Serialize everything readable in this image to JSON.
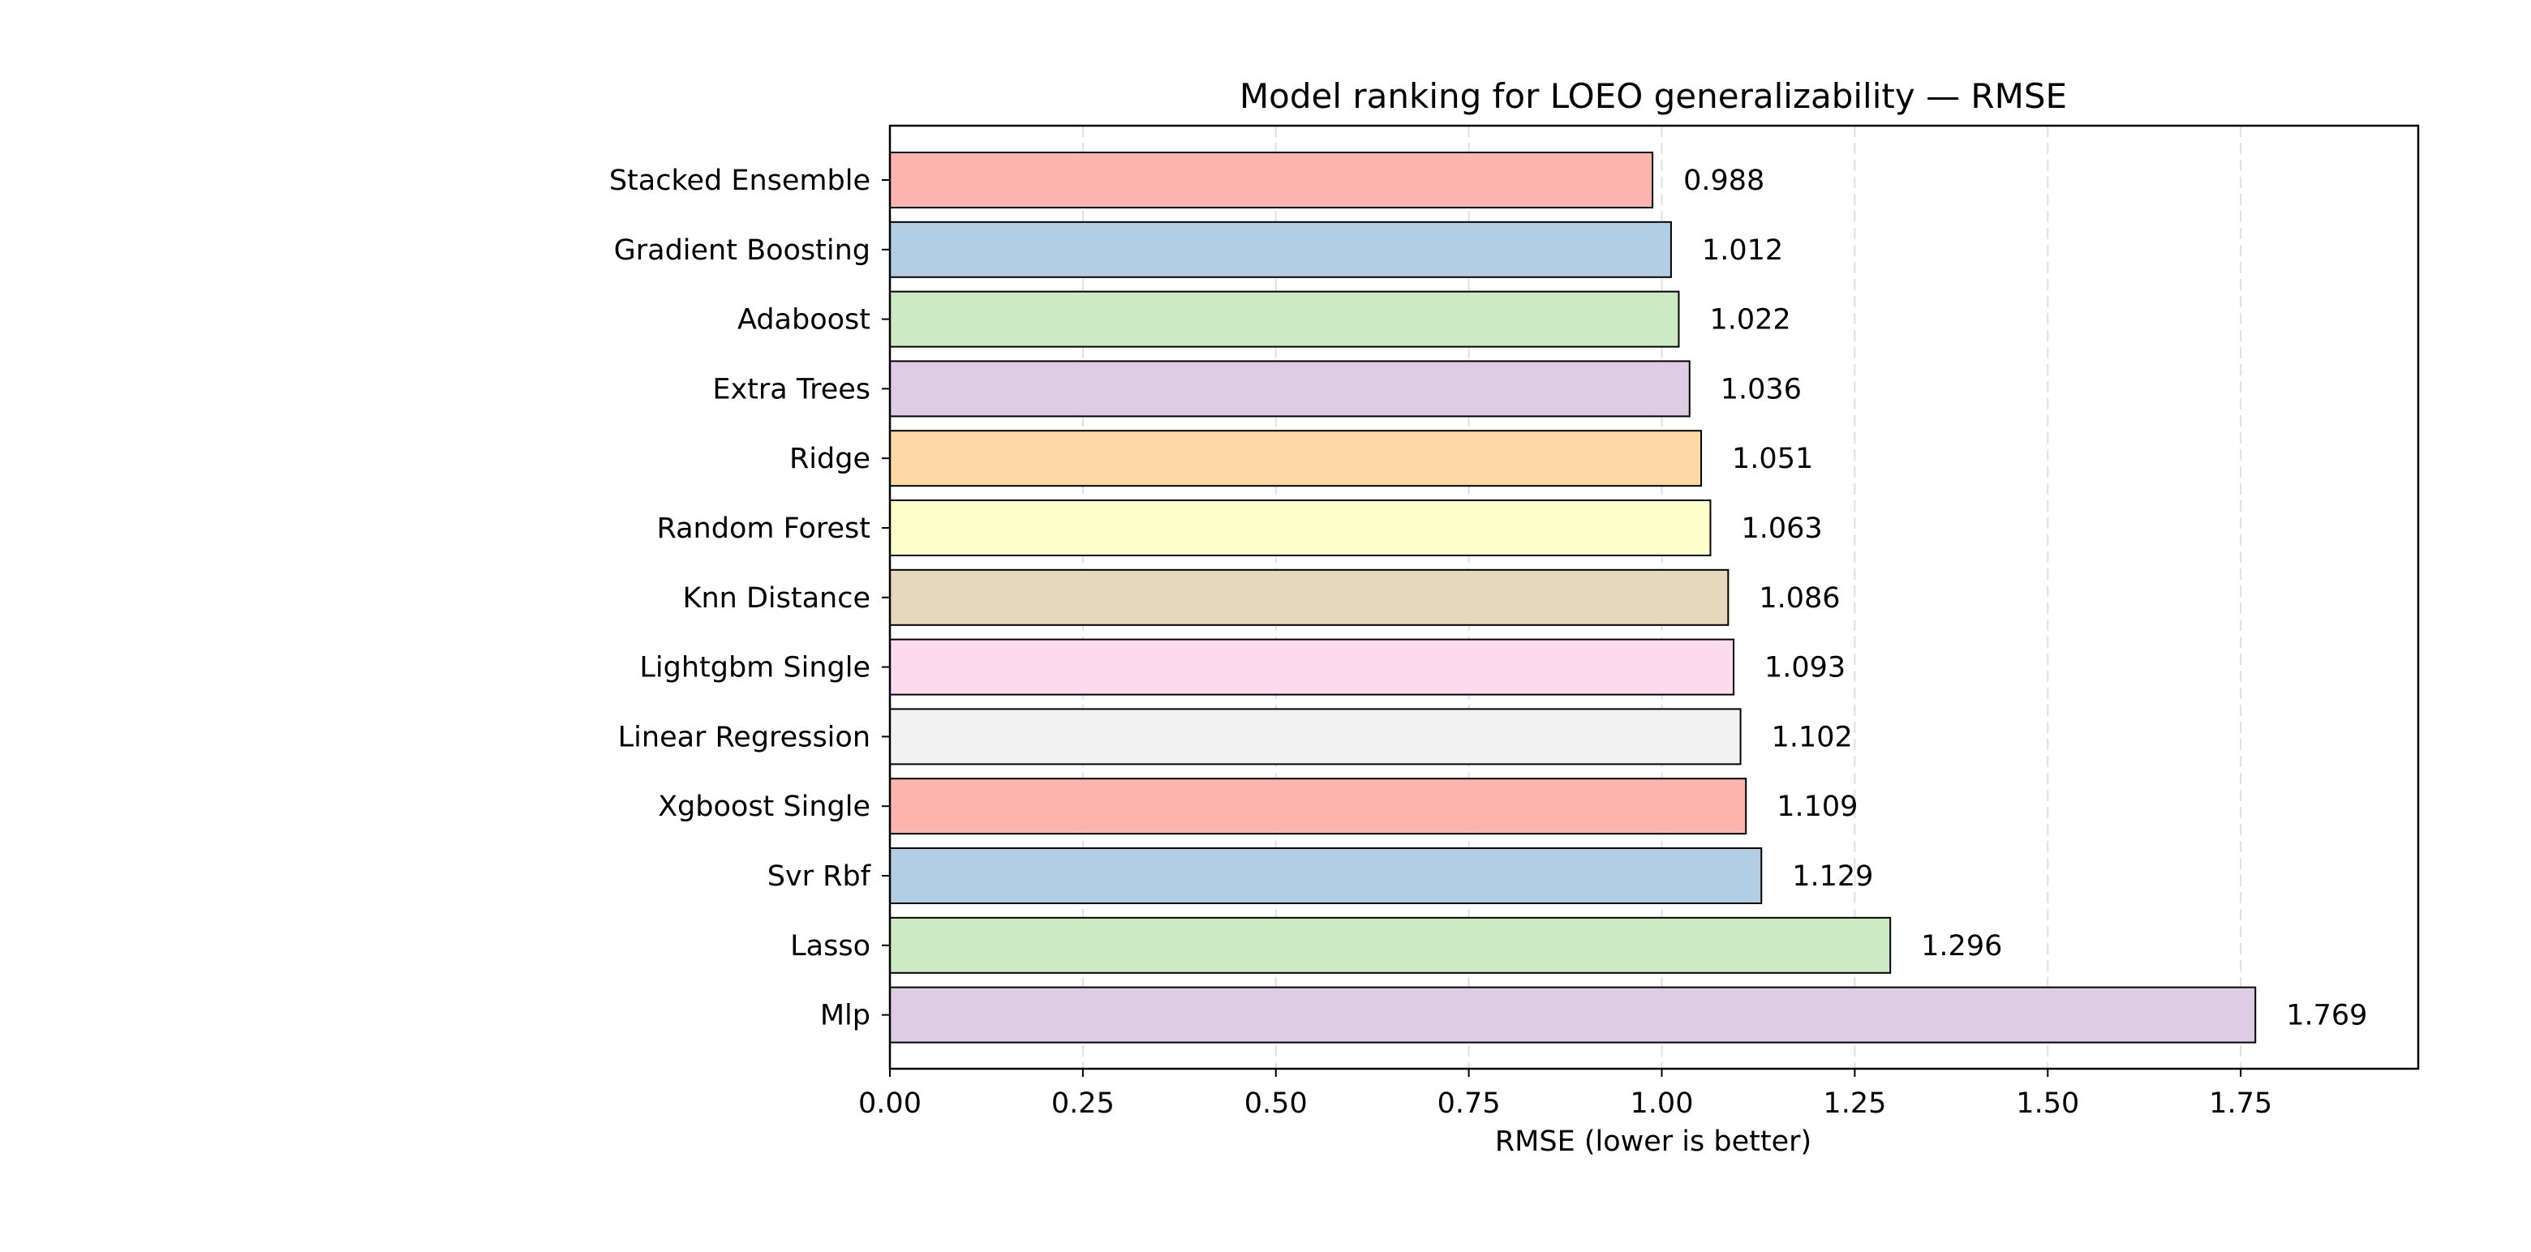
{
  "chart_data": {
    "type": "bar",
    "orientation": "horizontal",
    "title": "Model ranking for LOEO generalizability — RMSE",
    "xlabel": "RMSE (lower is better)",
    "ylabel": "",
    "xlim": [
      0,
      1.98
    ],
    "xticks": [
      0,
      0.25,
      0.5,
      0.75,
      1.0,
      1.25,
      1.5,
      1.75
    ],
    "xtick_labels": [
      "0.00",
      "0.25",
      "0.50",
      "0.75",
      "1.00",
      "1.25",
      "1.50",
      "1.75"
    ],
    "grid": "vertical dashed",
    "categories": [
      "Stacked Ensemble",
      "Gradient Boosting",
      "Adaboost",
      "Extra Trees",
      "Ridge",
      "Random Forest",
      "Knn Distance",
      "Lightgbm Single",
      "Linear Regression",
      "Xgboost Single",
      "Svr Rbf",
      "Lasso",
      "Mlp"
    ],
    "values": [
      0.988,
      1.012,
      1.022,
      1.036,
      1.051,
      1.063,
      1.086,
      1.093,
      1.102,
      1.109,
      1.129,
      1.296,
      1.769
    ],
    "value_labels": [
      "0.988",
      "1.012",
      "1.022",
      "1.036",
      "1.051",
      "1.063",
      "1.086",
      "1.093",
      "1.102",
      "1.109",
      "1.129",
      "1.296",
      "1.769"
    ],
    "colors": [
      "#fbb4ae",
      "#b3cde3",
      "#ccebc5",
      "#decbe4",
      "#fed9a6",
      "#ffffcc",
      "#e5d8bd",
      "#fddaec",
      "#f2f2f2",
      "#fbb4ae",
      "#b3cde3",
      "#ccebc5",
      "#decbe4"
    ]
  }
}
